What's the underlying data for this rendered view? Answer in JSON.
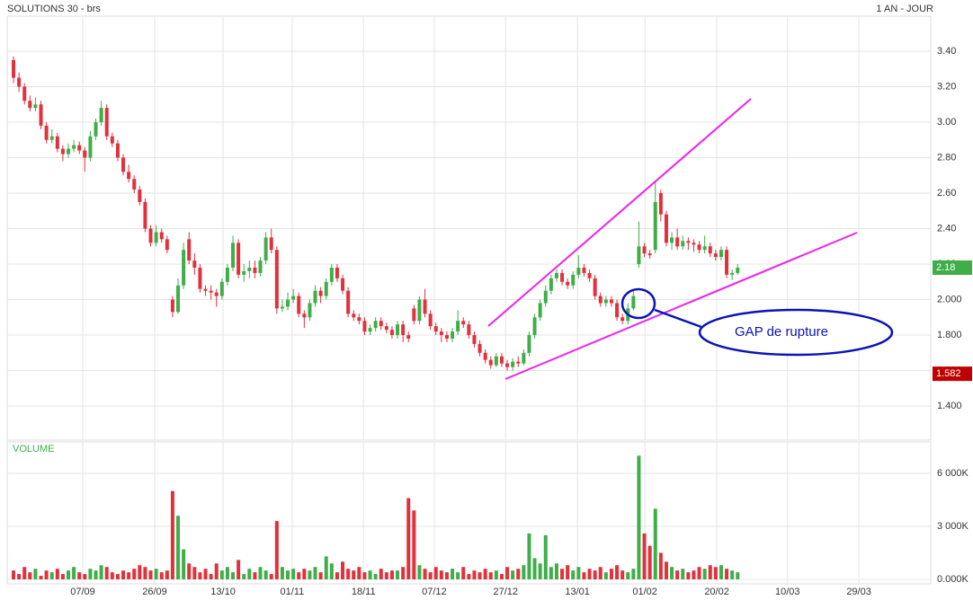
{
  "chart_data": {
    "type": "candlestick",
    "title": "SOLUTIONS 30 - brs",
    "period": "1 AN - JOUR",
    "volume_label": "VOLUME",
    "annotation": "GAP de rupture",
    "last_price": {
      "value": 2.18,
      "label": "2.18"
    },
    "low_price": {
      "value": 1.582,
      "label": "1.582"
    },
    "up_color": "#3fae49",
    "down_color": "#e0313c",
    "trend_color": "#ee22ee",
    "annotation_color": "#0a14b4",
    "grid": true,
    "xlim": [
      -1.15,
      167.2
    ],
    "xticks": [
      {
        "value": 12.62,
        "label": "07/09"
      },
      {
        "value": 25.74,
        "label": "26/09"
      },
      {
        "value": 38.2,
        "label": "13/10"
      },
      {
        "value": 50.8,
        "label": "01/11"
      },
      {
        "value": 63.8,
        "label": "18/11"
      },
      {
        "value": 76.7,
        "label": "07/12"
      },
      {
        "value": 89.7,
        "label": "27/12"
      },
      {
        "value": 102.8,
        "label": "13/01"
      },
      {
        "value": 115.1,
        "label": "01/02"
      },
      {
        "value": 128.2,
        "label": "20/02"
      },
      {
        "value": 141.1,
        "label": "10/03"
      },
      {
        "value": 154.1,
        "label": "29/03"
      }
    ],
    "ylim": [
      1.208,
      3.663
    ],
    "yticks": [
      {
        "value": 3.4,
        "label": "3.40"
      },
      {
        "value": 3.2,
        "label": "3.20"
      },
      {
        "value": 3.0,
        "label": "3.00"
      },
      {
        "value": 2.8,
        "label": "2.80"
      },
      {
        "value": 2.6,
        "label": "2.60"
      },
      {
        "value": 2.4,
        "label": "2.40"
      },
      {
        "value": 2.2,
        "label": "2.20"
      },
      {
        "value": 2.0,
        "label": "2.000"
      },
      {
        "value": 1.8,
        "label": "1.800"
      },
      {
        "value": 1.6,
        "label": "1.600"
      },
      {
        "value": 1.4,
        "label": "1.400"
      }
    ],
    "y2lim": [
      -254,
      7780
    ],
    "y2ticks": [
      {
        "value": 6000,
        "label": "6 000K"
      },
      {
        "value": 3000,
        "label": "3 000K"
      },
      {
        "value": 0,
        "label": "0.000K"
      }
    ],
    "ohlcv": [
      [
        3.35,
        3.37,
        3.22,
        3.25,
        500
      ],
      [
        3.25,
        3.28,
        3.17,
        3.2,
        300
      ],
      [
        3.2,
        3.22,
        3.1,
        3.12,
        700
      ],
      [
        3.12,
        3.15,
        3.06,
        3.08,
        400
      ],
      [
        3.08,
        3.14,
        3.06,
        3.1,
        600
      ],
      [
        3.1,
        3.12,
        2.96,
        2.98,
        200
      ],
      [
        2.98,
        3.0,
        2.88,
        2.9,
        500
      ],
      [
        2.9,
        2.96,
        2.88,
        2.92,
        400
      ],
      [
        2.92,
        2.94,
        2.83,
        2.85,
        600
      ],
      [
        2.85,
        2.87,
        2.78,
        2.82,
        300
      ],
      [
        2.82,
        2.88,
        2.8,
        2.85,
        500
      ],
      [
        2.85,
        2.9,
        2.83,
        2.87,
        700
      ],
      [
        2.87,
        2.89,
        2.82,
        2.84,
        400
      ],
      [
        2.84,
        2.86,
        2.72,
        2.8,
        300
      ],
      [
        2.8,
        2.95,
        2.78,
        2.92,
        600
      ],
      [
        2.92,
        3.02,
        2.9,
        3.0,
        500
      ],
      [
        3.0,
        3.12,
        2.98,
        3.08,
        800
      ],
      [
        3.08,
        3.1,
        2.9,
        2.92,
        700
      ],
      [
        2.92,
        2.94,
        2.86,
        2.88,
        400
      ],
      [
        2.88,
        2.9,
        2.78,
        2.8,
        300
      ],
      [
        2.8,
        2.82,
        2.7,
        2.72,
        500
      ],
      [
        2.72,
        2.76,
        2.66,
        2.68,
        400
      ],
      [
        2.68,
        2.7,
        2.6,
        2.62,
        600
      ],
      [
        2.62,
        2.64,
        2.53,
        2.55,
        800
      ],
      [
        2.55,
        2.57,
        2.38,
        2.4,
        700
      ],
      [
        2.4,
        2.42,
        2.3,
        2.32,
        500
      ],
      [
        2.32,
        2.42,
        2.3,
        2.38,
        600
      ],
      [
        2.38,
        2.4,
        2.32,
        2.34,
        400
      ],
      [
        2.34,
        2.36,
        2.26,
        2.28,
        500
      ],
      [
        2.0,
        2.02,
        1.9,
        1.93,
        5000
      ],
      [
        1.93,
        2.12,
        1.92,
        2.08,
        3600
      ],
      [
        2.08,
        2.32,
        2.06,
        2.28,
        1700
      ],
      [
        2.34,
        2.38,
        2.2,
        2.22,
        900
      ],
      [
        2.22,
        2.26,
        2.14,
        2.18,
        700
      ],
      [
        2.18,
        2.2,
        2.04,
        2.06,
        400
      ],
      [
        2.06,
        2.08,
        2.02,
        2.05,
        600
      ],
      [
        2.05,
        2.08,
        2.0,
        2.04,
        300
      ],
      [
        2.04,
        2.06,
        1.96,
        2.02,
        900
      ],
      [
        2.02,
        2.12,
        2.0,
        2.1,
        500
      ],
      [
        2.1,
        2.2,
        2.08,
        2.18,
        700
      ],
      [
        2.18,
        2.36,
        2.16,
        2.32,
        400
      ],
      [
        2.32,
        2.34,
        2.12,
        2.14,
        1100
      ],
      [
        2.14,
        2.2,
        2.1,
        2.16,
        300
      ],
      [
        2.16,
        2.22,
        2.12,
        2.18,
        600
      ],
      [
        2.18,
        2.22,
        2.12,
        2.15,
        400
      ],
      [
        2.15,
        2.24,
        2.13,
        2.22,
        700
      ],
      [
        2.22,
        2.38,
        2.2,
        2.35,
        500
      ],
      [
        2.35,
        2.4,
        2.26,
        2.28,
        300
      ],
      [
        2.28,
        2.3,
        1.92,
        1.95,
        3300
      ],
      [
        1.95,
        2.0,
        1.93,
        1.96,
        700
      ],
      [
        1.96,
        2.04,
        1.94,
        2.0,
        500
      ],
      [
        2.0,
        2.06,
        1.98,
        2.02,
        600
      ],
      [
        2.02,
        2.04,
        1.9,
        1.92,
        400
      ],
      [
        1.92,
        1.94,
        1.84,
        1.9,
        600
      ],
      [
        1.9,
        2.0,
        1.88,
        1.98,
        500
      ],
      [
        1.98,
        2.08,
        1.96,
        2.05,
        700
      ],
      [
        2.05,
        2.07,
        1.98,
        2.02,
        400
      ],
      [
        2.02,
        2.12,
        2.0,
        2.1,
        1300
      ],
      [
        2.1,
        2.2,
        2.08,
        2.18,
        900
      ],
      [
        2.18,
        2.2,
        2.1,
        2.12,
        400
      ],
      [
        2.12,
        2.14,
        2.03,
        2.05,
        1000
      ],
      [
        2.05,
        2.07,
        1.9,
        1.92,
        600
      ],
      [
        1.92,
        1.94,
        1.88,
        1.9,
        500
      ],
      [
        1.9,
        1.92,
        1.86,
        1.88,
        700
      ],
      [
        1.88,
        1.9,
        1.8,
        1.82,
        400
      ],
      [
        1.82,
        1.86,
        1.8,
        1.84,
        500
      ],
      [
        1.84,
        1.9,
        1.82,
        1.88,
        300
      ],
      [
        1.88,
        1.9,
        1.83,
        1.85,
        600
      ],
      [
        1.85,
        1.87,
        1.81,
        1.83,
        400
      ],
      [
        1.83,
        1.85,
        1.78,
        1.8,
        500
      ],
      [
        1.8,
        1.88,
        1.78,
        1.86,
        500
      ],
      [
        1.86,
        1.88,
        1.76,
        1.8,
        700
      ],
      [
        1.8,
        1.82,
        1.76,
        1.78,
        4600
      ],
      [
        1.95,
        1.97,
        1.86,
        1.88,
        3900
      ],
      [
        1.88,
        2.02,
        1.86,
        2.0,
        800
      ],
      [
        2.0,
        2.06,
        1.9,
        1.92,
        600
      ],
      [
        1.92,
        1.94,
        1.83,
        1.85,
        400
      ],
      [
        1.85,
        1.87,
        1.8,
        1.82,
        700
      ],
      [
        1.82,
        1.84,
        1.76,
        1.8,
        500
      ],
      [
        1.8,
        1.82,
        1.76,
        1.78,
        400
      ],
      [
        1.78,
        1.84,
        1.76,
        1.82,
        600
      ],
      [
        1.82,
        1.94,
        1.8,
        1.88,
        400
      ],
      [
        1.88,
        1.9,
        1.84,
        1.86,
        700
      ],
      [
        1.86,
        1.88,
        1.78,
        1.8,
        300
      ],
      [
        1.8,
        1.82,
        1.73,
        1.75,
        500
      ],
      [
        1.75,
        1.77,
        1.68,
        1.7,
        400
      ],
      [
        1.7,
        1.72,
        1.64,
        1.66,
        600
      ],
      [
        1.66,
        1.68,
        1.61,
        1.63,
        400
      ],
      [
        1.63,
        1.7,
        1.62,
        1.68,
        500
      ],
      [
        1.68,
        1.7,
        1.62,
        1.64,
        300
      ],
      [
        1.64,
        1.66,
        1.6,
        1.62,
        700
      ],
      [
        1.62,
        1.67,
        1.6,
        1.65,
        500
      ],
      [
        1.65,
        1.68,
        1.62,
        1.64,
        600
      ],
      [
        1.64,
        1.72,
        1.63,
        1.7,
        800
      ],
      [
        1.7,
        1.82,
        1.68,
        1.8,
        2600
      ],
      [
        1.8,
        1.92,
        1.78,
        1.9,
        1200
      ],
      [
        1.9,
        2.0,
        1.88,
        1.98,
        900
      ],
      [
        1.98,
        2.08,
        1.96,
        2.05,
        2500
      ],
      [
        2.05,
        2.14,
        2.03,
        2.12,
        700
      ],
      [
        2.12,
        2.17,
        2.1,
        2.15,
        900
      ],
      [
        2.15,
        2.17,
        2.08,
        2.1,
        600
      ],
      [
        2.1,
        2.12,
        2.06,
        2.08,
        800
      ],
      [
        2.08,
        2.16,
        2.06,
        2.14,
        500
      ],
      [
        2.14,
        2.25,
        2.12,
        2.18,
        700
      ],
      [
        2.18,
        2.2,
        2.13,
        2.15,
        400
      ],
      [
        2.15,
        2.17,
        2.1,
        2.12,
        600
      ],
      [
        2.12,
        2.14,
        2.0,
        2.02,
        500
      ],
      [
        2.02,
        2.04,
        1.96,
        1.98,
        700
      ],
      [
        1.98,
        2.02,
        1.96,
        2.0,
        400
      ],
      [
        2.0,
        2.02,
        1.96,
        1.98,
        600
      ],
      [
        1.98,
        2.0,
        1.88,
        1.9,
        800
      ],
      [
        1.9,
        1.92,
        1.86,
        1.88,
        500
      ],
      [
        1.88,
        1.98,
        1.86,
        1.95,
        400
      ],
      [
        1.95,
        2.05,
        1.94,
        2.02,
        600
      ],
      [
        2.2,
        2.44,
        2.18,
        2.3,
        7000
      ],
      [
        2.3,
        2.32,
        2.24,
        2.26,
        2600
      ],
      [
        2.26,
        2.28,
        2.23,
        2.25,
        1900
      ],
      [
        2.28,
        2.67,
        2.26,
        2.55,
        4000
      ],
      [
        2.6,
        2.62,
        2.44,
        2.48,
        1500
      ],
      [
        2.48,
        2.5,
        2.3,
        2.32,
        1000
      ],
      [
        2.32,
        2.38,
        2.28,
        2.35,
        700
      ],
      [
        2.35,
        2.4,
        2.28,
        2.3,
        500
      ],
      [
        2.3,
        2.36,
        2.28,
        2.33,
        600
      ],
      [
        2.33,
        2.35,
        2.28,
        2.32,
        400
      ],
      [
        2.32,
        2.34,
        2.27,
        2.31,
        500
      ],
      [
        2.31,
        2.33,
        2.26,
        2.28,
        700
      ],
      [
        2.28,
        2.36,
        2.26,
        2.3,
        600
      ],
      [
        2.3,
        2.32,
        2.24,
        2.26,
        800
      ],
      [
        2.26,
        2.28,
        2.22,
        2.24,
        700
      ],
      [
        2.24,
        2.3,
        2.22,
        2.28,
        800
      ],
      [
        2.28,
        2.3,
        2.12,
        2.14,
        600
      ],
      [
        2.14,
        2.17,
        2.11,
        2.15,
        500
      ],
      [
        2.15,
        2.2,
        2.14,
        2.18,
        400
      ]
    ]
  }
}
